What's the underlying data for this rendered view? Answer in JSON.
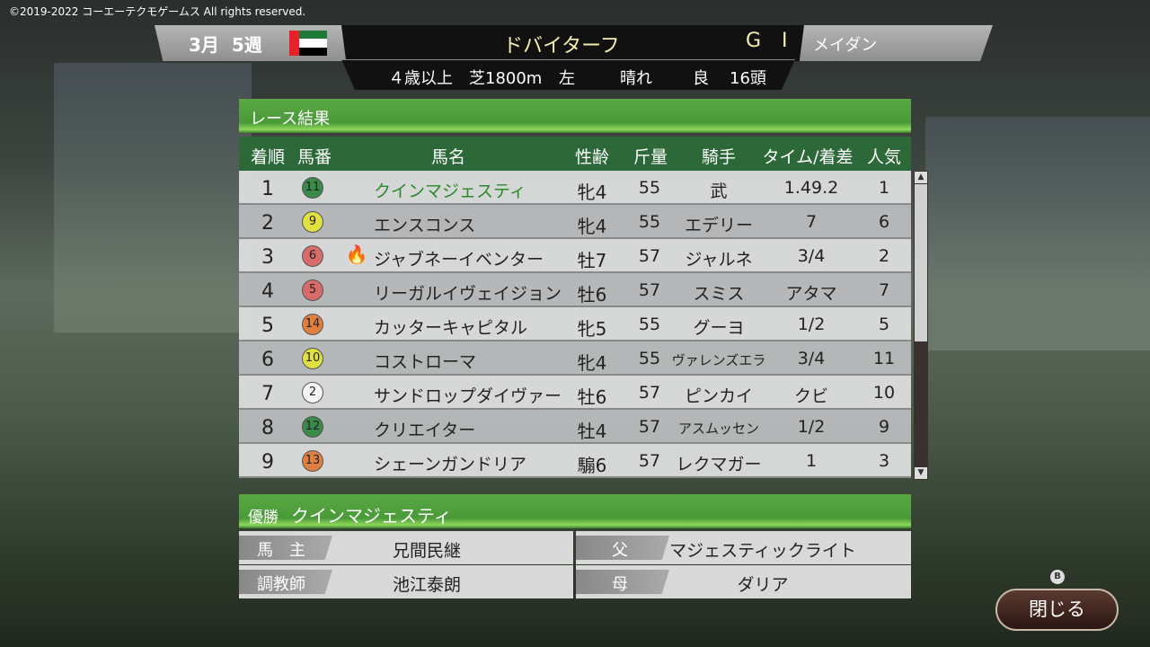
{
  "copyright": "©2019-2022 コーエーテクモゲームス All rights reserved.",
  "header": {
    "month": "3月",
    "week": "5週",
    "flag": "uae-flag",
    "race_name": "ドバイターフ",
    "grade": "G I",
    "course": "メイダン",
    "conditions": {
      "age": "４歳以上",
      "surface": "芝1800m",
      "direction": "左",
      "weather": "晴れ",
      "going": "良",
      "runners": "16頭"
    }
  },
  "results": {
    "title": "レース結果",
    "columns": [
      "着順",
      "馬番",
      "馬名",
      "性齢",
      "斤量",
      "騎手",
      "タイム/着差",
      "人気"
    ],
    "rows": [
      {
        "pos": "1",
        "no": "11",
        "no_color": "#3a8a4a",
        "name": "クインマジェスティ",
        "sex_age": "牝4",
        "weight": "55",
        "jockey": "武",
        "margin": "1.49.2",
        "pop": "1",
        "highlight": true
      },
      {
        "pos": "2",
        "no": "9",
        "no_color": "#e0e040",
        "name": "エンスコンス",
        "sex_age": "牝4",
        "weight": "55",
        "jockey": "エデリー",
        "margin": "7",
        "pop": "6"
      },
      {
        "pos": "3",
        "no": "6",
        "no_color": "#d86a6a",
        "name": "ジャブネーイベンター",
        "sex_age": "牡7",
        "weight": "57",
        "jockey": "ジャルネ",
        "margin": "3/4",
        "pop": "2",
        "icon": "fire-icon"
      },
      {
        "pos": "4",
        "no": "5",
        "no_color": "#d86a6a",
        "name": "リーガルイヴェイジョン",
        "sex_age": "牡6",
        "weight": "57",
        "jockey": "スミス",
        "margin": "アタマ",
        "pop": "7"
      },
      {
        "pos": "5",
        "no": "14",
        "no_color": "#e08040",
        "name": "カッターキャピタル",
        "sex_age": "牝5",
        "weight": "55",
        "jockey": "グーヨ",
        "margin": "1/2",
        "pop": "5"
      },
      {
        "pos": "6",
        "no": "10",
        "no_color": "#e0e040",
        "name": "コストローマ",
        "sex_age": "牝4",
        "weight": "55",
        "jockey": "ヴァレンズエラ",
        "margin": "3/4",
        "pop": "11"
      },
      {
        "pos": "7",
        "no": "2",
        "no_color": "#f4f4f4",
        "name": "サンドロップダイヴァー",
        "sex_age": "牡6",
        "weight": "57",
        "jockey": "ピンカイ",
        "margin": "クビ",
        "pop": "10"
      },
      {
        "pos": "8",
        "no": "12",
        "no_color": "#3a8a4a",
        "name": "クリエイター",
        "sex_age": "牡4",
        "weight": "57",
        "jockey": "アスムッセン",
        "margin": "1/2",
        "pop": "9"
      },
      {
        "pos": "9",
        "no": "13",
        "no_color": "#e08040",
        "name": "シェーンガンドリア",
        "sex_age": "騸6",
        "weight": "57",
        "jockey": "レクマガー",
        "margin": "1",
        "pop": "3"
      }
    ]
  },
  "winner": {
    "label": "優勝",
    "name": "クインマジェスティ",
    "owner_label": "馬　主",
    "owner": "兄間民継",
    "trainer_label": "調教師",
    "trainer": "池江泰朗",
    "sire_label": "父",
    "sire": "マジェスティックライト",
    "dam_label": "母",
    "dam": "ダリア"
  },
  "buttons": {
    "b_hint": "B",
    "close": "閉じる"
  },
  "colors": {
    "accent_green": "#2c6838",
    "winner_text": "#2a8a2a",
    "title_text": "#f4eeb0"
  }
}
